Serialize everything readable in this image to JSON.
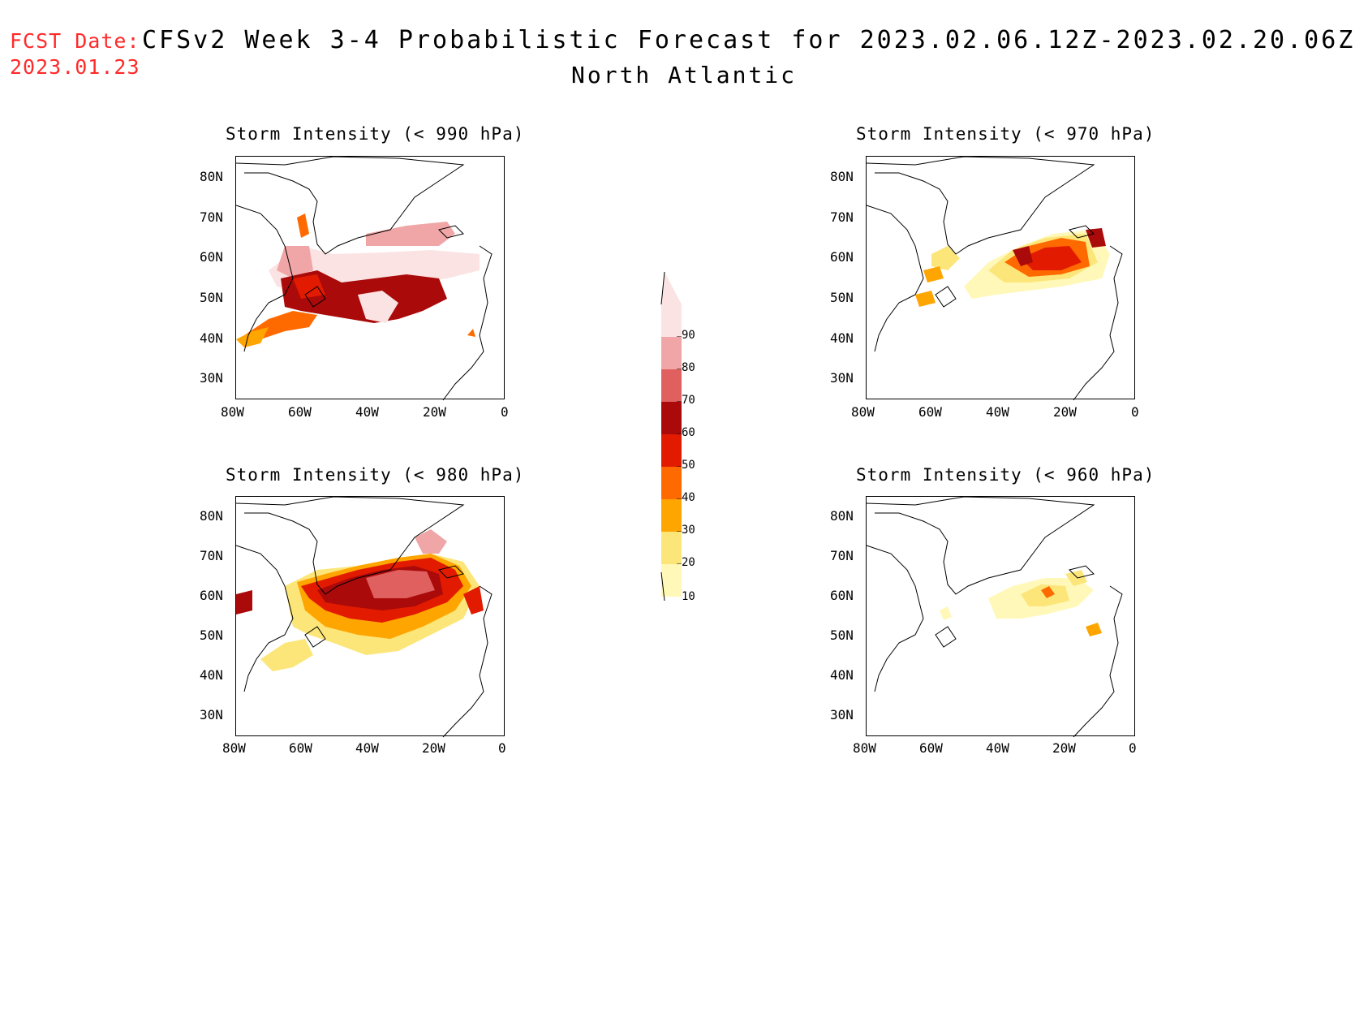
{
  "header": {
    "fcst_label": "FCST Date:",
    "fcst_date": "2023.01.23",
    "title": "CFSv2 Week 3-4 Probabilistic Forecast for 2023.02.06.12Z-2023.02.20.06Z",
    "subtitle": "North Atlantic"
  },
  "axes": {
    "lat_labels": [
      "80N",
      "70N",
      "60N",
      "50N",
      "40N",
      "30N"
    ],
    "lon_labels": [
      "80W",
      "60W",
      "40W",
      "20W",
      "0"
    ]
  },
  "panels": [
    {
      "title": "Storm Intensity (< 990 hPa)",
      "max_prob": 90
    },
    {
      "title": "Storm Intensity (< 970 hPa)",
      "max_prob": 60
    },
    {
      "title": "Storm Intensity (< 980 hPa)",
      "max_prob": 80
    },
    {
      "title": "Storm Intensity (< 960 hPa)",
      "max_prob": 50
    }
  ],
  "colorbar": {
    "levels": [
      "90",
      "80",
      "70",
      "60",
      "50",
      "40",
      "30",
      "20",
      "10"
    ],
    "colors": [
      "#fbe3e3",
      "#f0a6a6",
      "#e06060",
      "#aa0a0a",
      "#e21b00",
      "#ff6a00",
      "#ffa500",
      "#fce67a",
      "#fff8b8"
    ]
  }
}
